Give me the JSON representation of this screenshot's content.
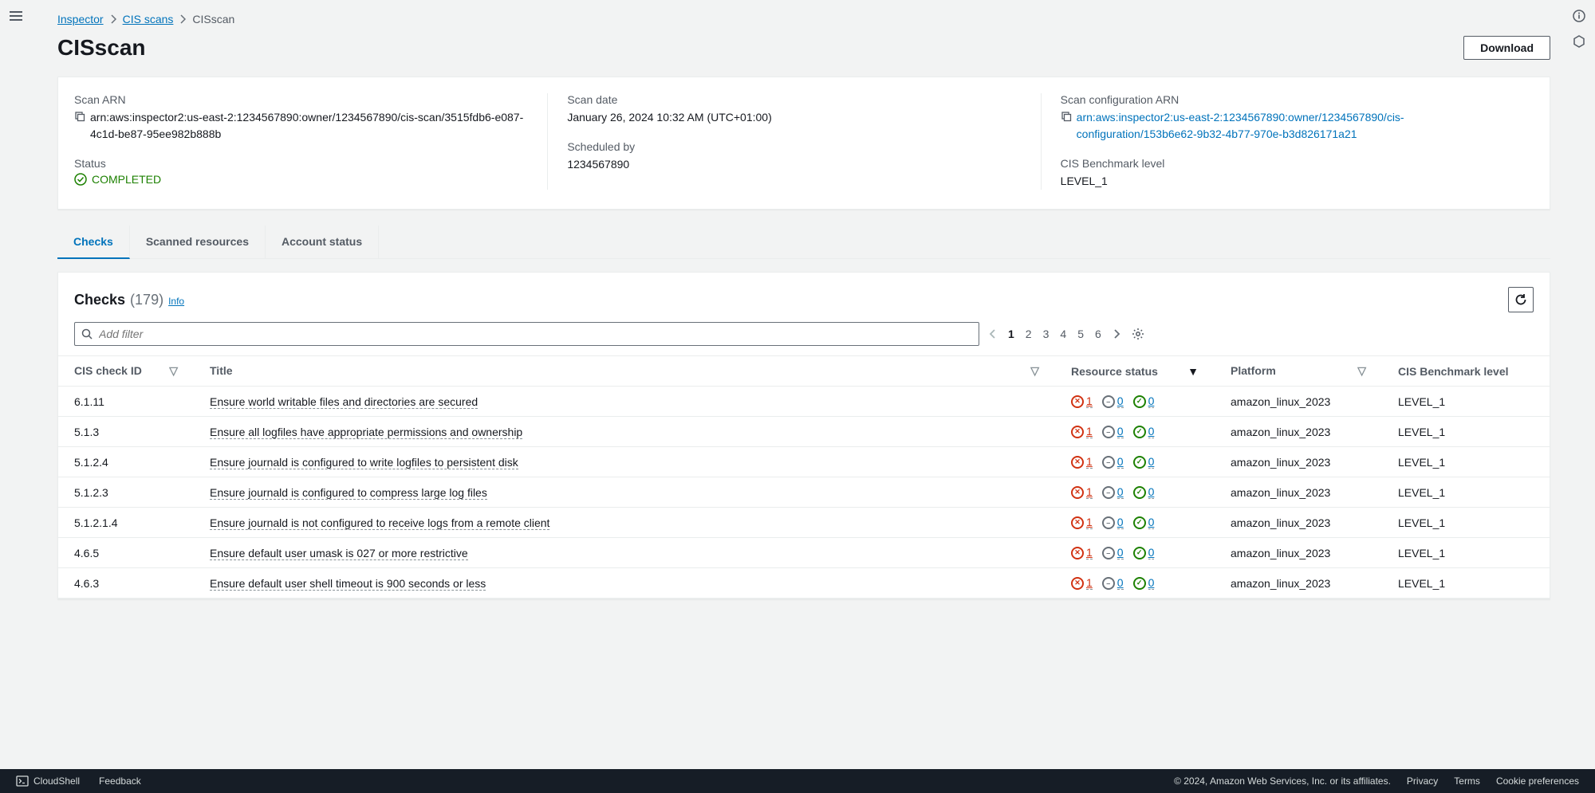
{
  "breadcrumb": {
    "items": [
      {
        "label": "Inspector",
        "link": true
      },
      {
        "label": "CIS scans",
        "link": true
      },
      {
        "label": "CISscan",
        "link": false
      }
    ]
  },
  "page": {
    "title": "CISscan",
    "download_label": "Download"
  },
  "summary": {
    "scan_arn_label": "Scan ARN",
    "scan_arn": "arn:aws:inspector2:us-east-2:1234567890:owner/1234567890/cis-scan/3515fdb6-e087-4c1d-be87-95ee982b888b",
    "status_label": "Status",
    "status": "COMPLETED",
    "scan_date_label": "Scan date",
    "scan_date": "January 26, 2024 10:32 AM (UTC+01:00)",
    "scheduled_by_label": "Scheduled by",
    "scheduled_by": "1234567890",
    "config_arn_label": "Scan configuration ARN",
    "config_arn": "arn:aws:inspector2:us-east-2:1234567890:owner/1234567890/cis-configuration/153b6e62-9b32-4b77-970e-b3d826171a21",
    "level_label": "CIS Benchmark level",
    "level": "LEVEL_1"
  },
  "tabs": {
    "checks": "Checks",
    "scanned": "Scanned resources",
    "account": "Account status"
  },
  "section": {
    "title": "Checks",
    "count": "(179)",
    "info": "Info",
    "filter_placeholder": "Add filter"
  },
  "pagination": {
    "current": "1",
    "pages": [
      "1",
      "2",
      "3",
      "4",
      "5",
      "6"
    ]
  },
  "columns": {
    "id": "CIS check ID",
    "title": "Title",
    "status": "Resource status",
    "platform": "Platform",
    "level": "CIS Benchmark level"
  },
  "rows": [
    {
      "id": "6.1.11",
      "title": "Ensure world writable files and directories are secured",
      "fail": "1",
      "skip": "0",
      "pass": "0",
      "platform": "amazon_linux_2023",
      "level": "LEVEL_1"
    },
    {
      "id": "5.1.3",
      "title": "Ensure all logfiles have appropriate permissions and ownership",
      "fail": "1",
      "skip": "0",
      "pass": "0",
      "platform": "amazon_linux_2023",
      "level": "LEVEL_1"
    },
    {
      "id": "5.1.2.4",
      "title": "Ensure journald is configured to write logfiles to persistent disk",
      "fail": "1",
      "skip": "0",
      "pass": "0",
      "platform": "amazon_linux_2023",
      "level": "LEVEL_1"
    },
    {
      "id": "5.1.2.3",
      "title": "Ensure journald is configured to compress large log files",
      "fail": "1",
      "skip": "0",
      "pass": "0",
      "platform": "amazon_linux_2023",
      "level": "LEVEL_1"
    },
    {
      "id": "5.1.2.1.4",
      "title": "Ensure journald is not configured to receive logs from a remote client",
      "fail": "1",
      "skip": "0",
      "pass": "0",
      "platform": "amazon_linux_2023",
      "level": "LEVEL_1"
    },
    {
      "id": "4.6.5",
      "title": "Ensure default user umask is 027 or more restrictive",
      "fail": "1",
      "skip": "0",
      "pass": "0",
      "platform": "amazon_linux_2023",
      "level": "LEVEL_1"
    },
    {
      "id": "4.6.3",
      "title": "Ensure default user shell timeout is 900 seconds or less",
      "fail": "1",
      "skip": "0",
      "pass": "0",
      "platform": "amazon_linux_2023",
      "level": "LEVEL_1"
    }
  ],
  "footer": {
    "cloudshell": "CloudShell",
    "feedback": "Feedback",
    "copyright": "© 2024, Amazon Web Services, Inc. or its affiliates.",
    "privacy": "Privacy",
    "terms": "Terms",
    "cookies": "Cookie preferences"
  }
}
